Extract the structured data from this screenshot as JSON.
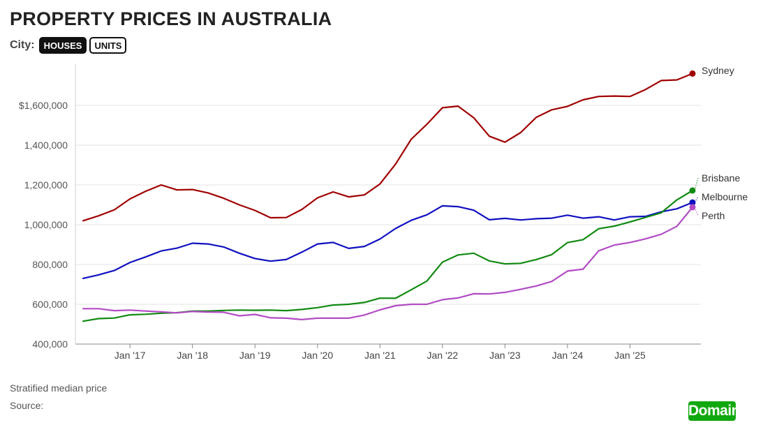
{
  "header": {
    "title": "PROPERTY PRICES IN AUSTRALIA",
    "city_label": "City:",
    "toggle_houses": "HOUSES",
    "toggle_units": "UNITS"
  },
  "footer": {
    "note": "Stratified median price",
    "source": "Source:",
    "logo": "Domain"
  },
  "chart_data": {
    "type": "line",
    "title": "PROPERTY PRICES IN AUSTRALIA",
    "xlabel": "",
    "ylabel": "",
    "ylim": [
      400000,
      1750000
    ],
    "x_range": [
      2016.25,
      2026.0
    ],
    "y_ticks": [
      400000,
      600000,
      800000,
      1000000,
      1200000,
      1400000,
      1600000
    ],
    "y_tick_labels": [
      "400,000",
      "600,000",
      "800,000",
      "1,000,000",
      "1,200,000",
      "1,400,000",
      "$1,600,000"
    ],
    "x_ticks": [
      2017,
      2018,
      2019,
      2020,
      2021,
      2022,
      2023,
      2024,
      2025
    ],
    "x_tick_labels": [
      "Jan '17",
      "Jan '18",
      "Jan '19",
      "Jan '20",
      "Jan '21",
      "Jan '22",
      "Jan '23",
      "Jan '24",
      "Jan '25"
    ],
    "grid": true,
    "legend": "inline labels at line ends",
    "x": [
      2016.25,
      2016.5,
      2016.75,
      2017.0,
      2017.25,
      2017.5,
      2017.75,
      2018.0,
      2018.25,
      2018.5,
      2018.75,
      2019.0,
      2019.25,
      2019.5,
      2019.75,
      2020.0,
      2020.25,
      2020.5,
      2020.75,
      2021.0,
      2021.25,
      2021.5,
      2021.75,
      2022.0,
      2022.25,
      2022.5,
      2022.75,
      2023.0,
      2023.25,
      2023.5,
      2023.75,
      2024.0,
      2024.25,
      2024.5,
      2024.75,
      2025.0,
      2025.25,
      2025.5,
      2025.75,
      2026.0
    ],
    "series": [
      {
        "name": "Sydney",
        "color": "#a00000",
        "values": [
          1020000,
          1045000,
          1075000,
          1130000,
          1168000,
          1200000,
          1175000,
          1177000,
          1160000,
          1133000,
          1100000,
          1072000,
          1035000,
          1036000,
          1077000,
          1135000,
          1165000,
          1140000,
          1150000,
          1205000,
          1305000,
          1430000,
          1505000,
          1588000,
          1596000,
          1538000,
          1445000,
          1415000,
          1463000,
          1540000,
          1578000,
          1595000,
          1628000,
          1645000,
          1647000,
          1645000,
          1680000,
          1725000,
          1728000,
          1760000
        ]
      },
      {
        "name": "Melbourne",
        "color": "#1010c0",
        "values": [
          730000,
          748000,
          770000,
          810000,
          838000,
          868000,
          882000,
          907000,
          903000,
          888000,
          857000,
          830000,
          817000,
          825000,
          862000,
          903000,
          911000,
          881000,
          891000,
          928000,
          981000,
          1022000,
          1050000,
          1095000,
          1091000,
          1073000,
          1025000,
          1032000,
          1024000,
          1030000,
          1033000,
          1048000,
          1033000,
          1040000,
          1024000,
          1040000,
          1042000,
          1065000,
          1080000,
          1112000
        ]
      },
      {
        "name": "Brisbane",
        "color": "#118a11",
        "values": [
          515000,
          528000,
          531000,
          547000,
          550000,
          555000,
          558000,
          566000,
          566000,
          569000,
          571000,
          570000,
          571000,
          568000,
          574000,
          583000,
          596000,
          600000,
          609000,
          631000,
          630000,
          673000,
          717000,
          812000,
          848000,
          857000,
          818000,
          803000,
          806000,
          825000,
          850000,
          910000,
          925000,
          980000,
          993000,
          1014000,
          1037000,
          1060000,
          1125000,
          1172000
        ]
      },
      {
        "name": "Perth",
        "color": "#b24cc4",
        "values": [
          578000,
          578000,
          568000,
          571000,
          566000,
          562000,
          557000,
          564000,
          561000,
          560000,
          542000,
          549000,
          532000,
          530000,
          523000,
          530000,
          530000,
          530000,
          546000,
          572000,
          593000,
          600000,
          600000,
          623000,
          632000,
          653000,
          652000,
          660000,
          675000,
          692000,
          715000,
          767000,
          777000,
          869000,
          898000,
          911000,
          929000,
          952000,
          992000,
          1088000
        ]
      }
    ]
  }
}
